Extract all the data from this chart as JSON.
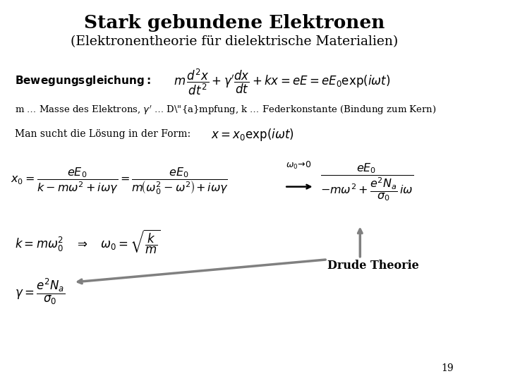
{
  "title1": "Stark gebundene Elektronen",
  "title2": "(Elektronentheorie für dielektrische Materialien)",
  "bewegung_label": "Bewegungsgleichung:",
  "param_text": "m ... Masse des Elektrons,  ... Dämpfung, k ... Federkonstante (Bindung zum Kern)",
  "losung_label": "Man sucht die Lösung in der Form:",
  "drude_label": "Drude Theorie",
  "page_number": "19",
  "bg_color": "#ffffff",
  "text_color": "#000000",
  "title_color": "#000000"
}
